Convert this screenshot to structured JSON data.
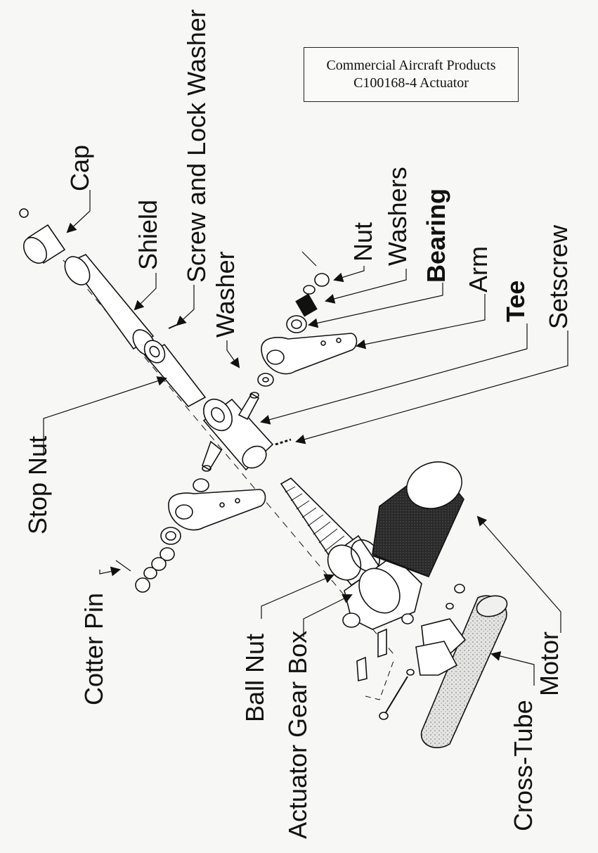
{
  "title_box": {
    "line1": "Commercial Aircraft Products",
    "line2": "C100168-4 Actuator"
  },
  "labels": {
    "screw_lock_washer": "Screw and Lock Washer",
    "cap": "Cap",
    "shield": "Shield",
    "washers": "Washers",
    "nut": "Nut",
    "bearing": "Bearing",
    "washer": "Washer",
    "arm": "Arm",
    "tee": "Tee",
    "setscrew": "Setscrew",
    "stop_nut": "Stop Nut",
    "cotter_pin": "Cotter Pin",
    "ball_nut": "Ball Nut",
    "actuator_gear_box": "Actuator Gear Box",
    "cross_tube": "Cross-Tube",
    "motor": "Motor"
  }
}
